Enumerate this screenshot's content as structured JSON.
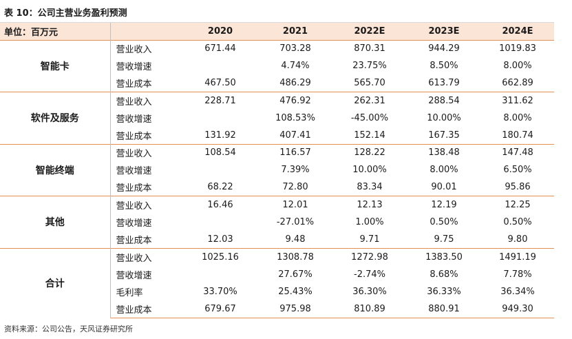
{
  "title": "表 10：公司主营业务盈利预测",
  "unit_label": "单位：百万元",
  "years": [
    "2020",
    "2021",
    "2022E",
    "2023E",
    "2024E"
  ],
  "groups": [
    {
      "name": "智能卡",
      "rows": [
        {
          "metric": "营业收入",
          "values": [
            "671.44",
            "703.28",
            "870.31",
            "944.29",
            "1019.83"
          ]
        },
        {
          "metric": "营收增速",
          "values": [
            "",
            "4.74%",
            "23.75%",
            "8.50%",
            "8.00%"
          ]
        },
        {
          "metric": "营业成本",
          "values": [
            "467.50",
            "486.29",
            "565.70",
            "613.79",
            "662.89"
          ]
        }
      ]
    },
    {
      "name": "软件及服务",
      "rows": [
        {
          "metric": "营业收入",
          "values": [
            "228.71",
            "476.92",
            "262.31",
            "288.54",
            "311.62"
          ]
        },
        {
          "metric": "营收增速",
          "values": [
            "",
            "108.53%",
            "-45.00%",
            "10.00%",
            "8.00%"
          ]
        },
        {
          "metric": "营业成本",
          "values": [
            "131.92",
            "407.41",
            "152.14",
            "167.35",
            "180.74"
          ]
        }
      ]
    },
    {
      "name": "智能终端",
      "rows": [
        {
          "metric": "营业收入",
          "values": [
            "108.54",
            "116.57",
            "128.22",
            "138.48",
            "147.48"
          ]
        },
        {
          "metric": "营收增速",
          "values": [
            "",
            "7.39%",
            "10.00%",
            "8.00%",
            "6.50%"
          ]
        },
        {
          "metric": "营业成本",
          "values": [
            "68.22",
            "72.80",
            "83.34",
            "90.01",
            "95.86"
          ]
        }
      ]
    },
    {
      "name": "其他",
      "rows": [
        {
          "metric": "营业收入",
          "values": [
            "16.46",
            "12.01",
            "12.13",
            "12.19",
            "12.25"
          ]
        },
        {
          "metric": "营收增速",
          "values": [
            "",
            "-27.01%",
            "1.00%",
            "0.50%",
            "0.50%"
          ]
        },
        {
          "metric": "营业成本",
          "values": [
            "12.03",
            "9.48",
            "9.71",
            "9.75",
            "9.80"
          ]
        }
      ]
    },
    {
      "name": "合计",
      "rows": [
        {
          "metric": "营业收入",
          "values": [
            "1025.16",
            "1308.78",
            "1272.98",
            "1383.50",
            "1491.19"
          ]
        },
        {
          "metric": "营收增速",
          "values": [
            "",
            "27.67%",
            "-2.74%",
            "8.68%",
            "7.78%"
          ]
        },
        {
          "metric": "毛利率",
          "values": [
            "33.70%",
            "25.43%",
            "36.30%",
            "36.33%",
            "36.34%"
          ]
        },
        {
          "metric": "营业成本",
          "values": [
            "679.67",
            "975.98",
            "810.89",
            "880.91",
            "949.30"
          ]
        }
      ]
    }
  ],
  "source": "资料来源：公司公告，天风证券研究所"
}
